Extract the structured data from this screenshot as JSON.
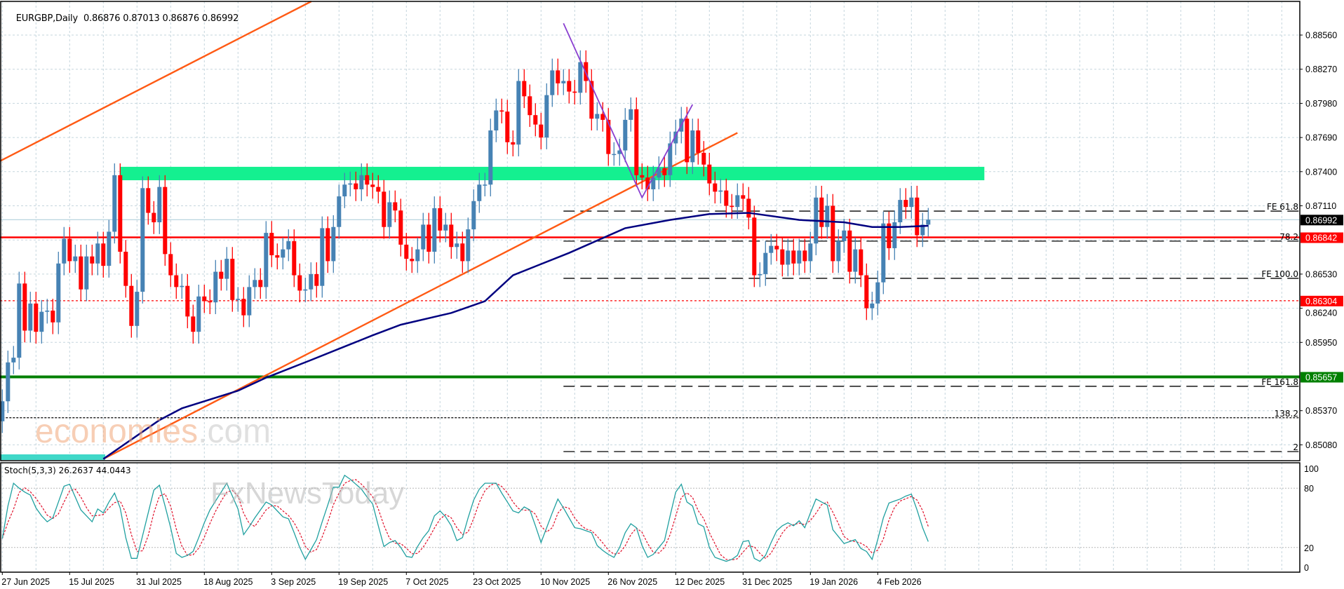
{
  "header": {
    "symbol_timeframe": "EURGBP,Daily",
    "ohlc": "0.86876 0.87013 0.86876 0.86992"
  },
  "watermark": {
    "line1_main": "economies",
    "line1_suffix": ".com",
    "line2": "FxNewsToday"
  },
  "colors": {
    "bull": "#4682b4",
    "bear": "#ff0000",
    "grid": "#c5d6de",
    "moving_average": "#000080",
    "trendline": "#ff5a14",
    "zone": "#14f090",
    "zigzag": "#8a3fd0",
    "stoch_main": "#20a0a0",
    "stoch_signal": "#e0102a"
  },
  "chart_data": [
    {
      "type": "candlestick",
      "symbol": "EURGBP",
      "timeframe": "Daily",
      "ylim": [
        0.8498,
        0.8886
      ],
      "y_ticks": [
        "0.88560",
        "0.88270",
        "0.87980",
        "0.87690",
        "0.87400",
        "0.87110",
        "0.86530",
        "0.86240",
        "0.85950",
        "0.85370",
        "0.85080"
      ],
      "y_grid": [
        0.8856,
        0.8827,
        0.8798,
        0.8769,
        0.874,
        0.8711,
        0.8682,
        0.8653,
        0.8624,
        0.8595,
        0.8566,
        0.8537,
        0.8508
      ],
      "x_ticks": [
        "27 Jun 2025",
        "15 Jul 2025",
        "31 Jul 2025",
        "18 Aug 2025",
        "3 Sep 2025",
        "19 Sep 2025",
        "7 Oct 2025",
        "23 Oct 2025",
        "10 Nov 2025",
        "26 Nov 2025",
        "12 Dec 2025",
        "31 Dec 2025",
        "19 Jan 2026",
        "4 Feb 2026"
      ],
      "grid": true,
      "first_open": 0.8528,
      "close": [
        0.8545,
        0.8578,
        0.8582,
        0.8645,
        0.8605,
        0.8628,
        0.8604,
        0.8621,
        0.8622,
        0.8612,
        0.8662,
        0.8683,
        0.8664,
        0.8668,
        0.864,
        0.8668,
        0.8662,
        0.8679,
        0.866,
        0.8689,
        0.8737,
        0.8672,
        0.8643,
        0.8609,
        0.8638,
        0.8726,
        0.8705,
        0.8697,
        0.8727,
        0.867,
        0.8652,
        0.8642,
        0.8643,
        0.8617,
        0.8604,
        0.8634,
        0.863,
        0.8629,
        0.8655,
        0.8649,
        0.8666,
        0.8631,
        0.8632,
        0.8618,
        0.8642,
        0.8648,
        0.8642,
        0.8688,
        0.8669,
        0.8667,
        0.8674,
        0.8681,
        0.8652,
        0.8639,
        0.864,
        0.8653,
        0.8643,
        0.8692,
        0.8664,
        0.8693,
        0.8719,
        0.8729,
        0.873,
        0.8725,
        0.8737,
        0.8729,
        0.8727,
        0.8723,
        0.8693,
        0.8714,
        0.8707,
        0.8678,
        0.8666,
        0.8664,
        0.8674,
        0.8695,
        0.8672,
        0.8709,
        0.869,
        0.8695,
        0.8676,
        0.8679,
        0.8664,
        0.8691,
        0.8715,
        0.8729,
        0.8729,
        0.8775,
        0.8792,
        0.8791,
        0.8765,
        0.8763,
        0.8817,
        0.8804,
        0.8788,
        0.878,
        0.8769,
        0.8805,
        0.8826,
        0.8815,
        0.8817,
        0.8808,
        0.8807,
        0.8833,
        0.8817,
        0.8785,
        0.8789,
        0.8784,
        0.8755,
        0.8755,
        0.8758,
        0.8784,
        0.8793,
        0.8737,
        0.8735,
        0.8725,
        0.8735,
        0.8743,
        0.8737,
        0.8764,
        0.8774,
        0.8785,
        0.8748,
        0.8775,
        0.8756,
        0.8746,
        0.873,
        0.8723,
        0.8724,
        0.8711,
        0.871,
        0.872,
        0.8717,
        0.8701,
        0.8652,
        0.8653,
        0.8671,
        0.8677,
        0.8674,
        0.8661,
        0.8673,
        0.8662,
        0.8673,
        0.8664,
        0.8679,
        0.8718,
        0.8693,
        0.8711,
        0.8664,
        0.8681,
        0.869,
        0.8655,
        0.8674,
        0.8652,
        0.8624,
        0.8628,
        0.8646,
        0.8696,
        0.8675,
        0.8697,
        0.8716,
        0.871,
        0.8718,
        0.8686,
        0.8695,
        0.86992
      ],
      "moving_average": [
        [
          "2025-07-23",
          0.8496
        ],
        [
          "2025-08-06",
          0.8529
        ],
        [
          "2025-08-12",
          0.8539
        ],
        [
          "2025-08-26",
          0.8554
        ],
        [
          "2025-09-02",
          0.8565
        ],
        [
          "2025-09-12",
          0.858
        ],
        [
          "2025-09-29",
          0.8601
        ],
        [
          "2025-10-06",
          0.861
        ],
        [
          "2025-10-17",
          0.862
        ],
        [
          "2025-10-27",
          0.863
        ],
        [
          "2025-11-03",
          0.8652
        ],
        [
          "2025-11-17",
          0.8671
        ],
        [
          "2025-12-01",
          0.8692
        ],
        [
          "2025-12-11",
          0.8699
        ],
        [
          "2025-12-22",
          0.8704
        ],
        [
          "2026-01-02",
          0.8705
        ],
        [
          "2026-01-15",
          0.8699
        ],
        [
          "2026-01-27",
          0.8697
        ],
        [
          "2026-02-03",
          0.8693
        ],
        [
          "2026-02-10",
          0.8693
        ],
        [
          "2026-02-17",
          0.8694
        ]
      ],
      "trendlines": [
        {
          "from": [
            "2025-06-27",
            0.875
          ],
          "to": [
            "2025-09-11",
            0.8882
          ],
          "extend": true
        },
        {
          "from": [
            "2025-07-23",
            0.8496
          ],
          "to": [
            "2025-12-30",
            0.8773
          ],
          "extend": false
        }
      ],
      "zigzag": [
        [
          "2025-11-14",
          0.8866
        ],
        [
          "2025-12-04",
          0.8718
        ],
        [
          "2025-12-17",
          0.8797
        ]
      ],
      "zone": {
        "from": "2025-07-28",
        "to": "2026-03-03",
        "top": 0.87441,
        "bottom": 0.87327
      },
      "horizontal_levels": [
        {
          "value": 0.86992,
          "label": "0.86992",
          "line_color": "#b0d0dc",
          "box_color": "#000000",
          "style": "solid"
        },
        {
          "value": 0.86842,
          "label": "0.86842",
          "line_color": "#ff0000",
          "box_color": "#ff0000",
          "style": "solid"
        },
        {
          "value": 0.86304,
          "label": "0.86304",
          "line_color": "#ff0000",
          "box_color": "#ff0000",
          "style": "dotted"
        },
        {
          "value": 0.85657,
          "label": "0.85657",
          "line_color": "#008000",
          "box_color": "#008000",
          "style": "thick"
        }
      ],
      "fibo_levels": [
        {
          "label": "FE 61.8",
          "value": 0.87065,
          "from": "2025-11-14",
          "style": "dashed"
        },
        {
          "label": "78.2",
          "value": 0.8681,
          "from": "2025-11-14",
          "style": "dashed"
        },
        {
          "label": "FE 100.0",
          "value": 0.86494,
          "from": "2025-11-14",
          "style": "dashed"
        },
        {
          "label": "FE 161.8",
          "value": 0.85577,
          "from": "2025-11-14",
          "style": "dashed"
        },
        {
          "label": "138.2",
          "value": 0.8531,
          "from": "2025-06-27",
          "style": "dotted"
        },
        {
          "label": "2",
          "value": 0.85023,
          "from": "2025-11-14",
          "style": "dashed"
        }
      ]
    },
    {
      "type": "line",
      "indicator": "Stoch(5,3,3)",
      "legend": "Stoch(5,3,3) 26.2637 44.0443",
      "ylim": [
        0,
        100
      ],
      "y_ticks": [
        "100",
        "80",
        "20",
        "0"
      ],
      "levels": [
        80,
        20
      ],
      "k": [
        29,
        62,
        85,
        80,
        76,
        73,
        60,
        52,
        46,
        50,
        66,
        82,
        84,
        71,
        58,
        52,
        46,
        59,
        55,
        66,
        75,
        60,
        30,
        9,
        9,
        32,
        55,
        78,
        83,
        62,
        40,
        14,
        10,
        12,
        16,
        30,
        45,
        58,
        67,
        76,
        85,
        72,
        59,
        33,
        41,
        50,
        58,
        66,
        63,
        57,
        51,
        49,
        35,
        20,
        8,
        18,
        28,
        46,
        63,
        81,
        81,
        93,
        89,
        84,
        79,
        71,
        64,
        42,
        21,
        25,
        27,
        20,
        11,
        10,
        21,
        30,
        37,
        52,
        57,
        51,
        42,
        27,
        30,
        50,
        68,
        79,
        85,
        85,
        85,
        75,
        66,
        57,
        55,
        61,
        58,
        42,
        25,
        40,
        55,
        69,
        60,
        50,
        40,
        39,
        37,
        35,
        22,
        17,
        13,
        10,
        20,
        35,
        44,
        40,
        22,
        10,
        13,
        20,
        27,
        52,
        76,
        84,
        66,
        62,
        44,
        41,
        20,
        10,
        8,
        6,
        8,
        12,
        26,
        27,
        9,
        6,
        12,
        25,
        37,
        42,
        45,
        42,
        47,
        40,
        55,
        69,
        66,
        63,
        38,
        31,
        24,
        26,
        28,
        19,
        16,
        8,
        28,
        50,
        65,
        67,
        69,
        72,
        74,
        58,
        40,
        26
      ]
    }
  ]
}
